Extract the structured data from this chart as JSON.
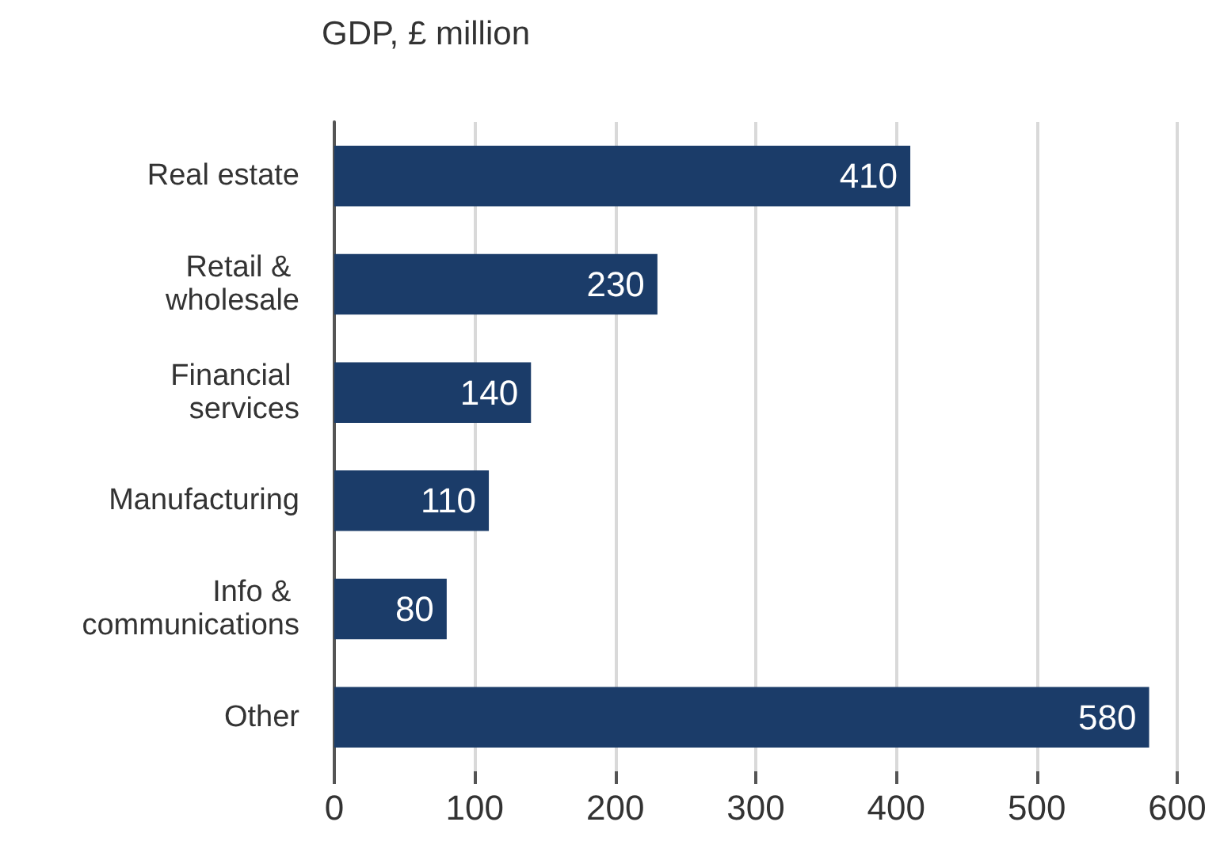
{
  "chart_data": {
    "type": "bar",
    "orientation": "horizontal",
    "title": "GDP, £ million",
    "categories": [
      "Real estate",
      "Retail & wholesale",
      "Financial services",
      "Manufacturing",
      "Info & communications",
      "Other"
    ],
    "values": [
      410,
      230,
      140,
      110,
      80,
      580
    ],
    "color": "#1b3c69",
    "data_labels": true,
    "xlim": [
      0,
      600
    ],
    "xticks": [
      0,
      100,
      200,
      300,
      400,
      500,
      600
    ],
    "grid": "x"
  }
}
